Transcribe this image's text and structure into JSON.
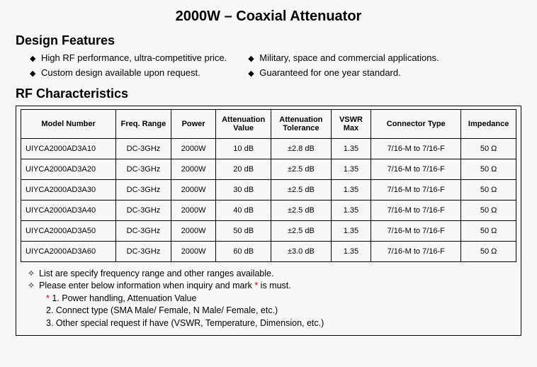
{
  "title": "2000W – Coaxial Attenuator",
  "sections": {
    "features_h": "Design Features",
    "rf_h": "RF Characteristics"
  },
  "features": {
    "left": [
      "High RF performance, ultra-competitive price.",
      "Custom design available upon request."
    ],
    "right": [
      "Military, space and commercial applications.",
      "Guaranteed for one year standard."
    ]
  },
  "table": {
    "columns": [
      {
        "label": "Model Number",
        "width": "19%"
      },
      {
        "label": "Freq. Range",
        "width": "11%"
      },
      {
        "label": "Power",
        "width": "9%"
      },
      {
        "label": "Attenuation Value",
        "width": "11%"
      },
      {
        "label": "Attenuation Tolerance",
        "width": "12%"
      },
      {
        "label": "VSWR Max",
        "width": "8%"
      },
      {
        "label": "Connector Type",
        "width": "18%"
      },
      {
        "label": "Impedance",
        "width": "11%"
      }
    ],
    "rows": [
      [
        "UIYCA2000AD3A10",
        "DC-3GHz",
        "2000W",
        "10 dB",
        "±2.8 dB",
        "1.35",
        "7/16-M to 7/16-F",
        "50 Ω"
      ],
      [
        "UIYCA2000AD3A20",
        "DC-3GHz",
        "2000W",
        "20 dB",
        "±2.5 dB",
        "1.35",
        "7/16-M to 7/16-F",
        "50 Ω"
      ],
      [
        "UIYCA2000AD3A30",
        "DC-3GHz",
        "2000W",
        "30 dB",
        "±2.5 dB",
        "1.35",
        "7/16-M to 7/16-F",
        "50 Ω"
      ],
      [
        "UIYCA2000AD3A40",
        "DC-3GHz",
        "2000W",
        "40 dB",
        "±2.5 dB",
        "1.35",
        "7/16-M to 7/16-F",
        "50 Ω"
      ],
      [
        "UIYCA2000AD3A50",
        "DC-3GHz",
        "2000W",
        "50 dB",
        "±2.5 dB",
        "1.35",
        "7/16-M to 7/16-F",
        "50 Ω"
      ],
      [
        "UIYCA2000AD3A60",
        "DC-3GHz",
        "2000W",
        "60 dB",
        "±3.0 dB",
        "1.35",
        "7/16-M to 7/16-F",
        "50 Ω"
      ]
    ]
  },
  "notes": {
    "bullet": "✧",
    "line1": "List are specify frequency range and other ranges available.",
    "line2_a": "Please enter below information when inquiry and mark ",
    "line2_star": "*",
    "line2_b": " is must.",
    "sub1_star": "*",
    "sub1": " 1. Power handling, Attenuation Value",
    "sub2": "2. Connect type (SMA Male/ Female, N Male/ Female, etc.)",
    "sub3": "3. Other special request if have (VSWR, Temperature, Dimension, etc.)"
  },
  "glyphs": {
    "diamond": "◆"
  }
}
